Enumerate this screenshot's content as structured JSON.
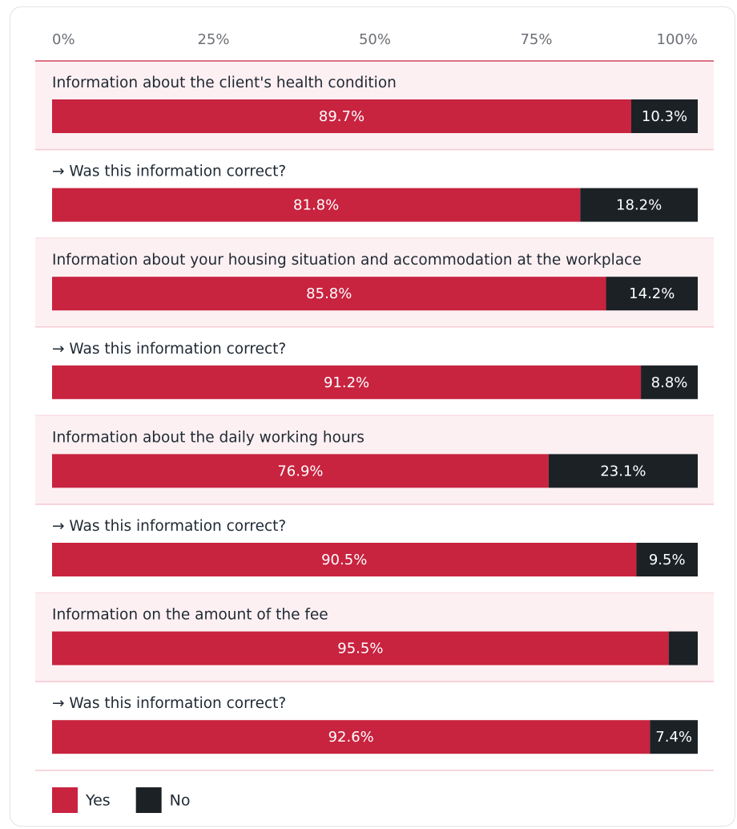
{
  "chart_data": {
    "type": "stacked-bar-horizontal",
    "categories": [
      "Information about the client's health condition",
      "→ Was this information correct?",
      "Information about your housing situation and accommodation at the workplace",
      "→ Was this information correct?",
      "Information about the daily working hours",
      "→ Was this information correct?",
      "Information on the amount of the fee",
      "→ Was this information correct?"
    ],
    "series": [
      {
        "name": "Yes",
        "color": "#c8233f",
        "values": [
          89.7,
          81.8,
          85.8,
          91.2,
          76.9,
          90.5,
          95.5,
          92.6
        ],
        "value_labels": [
          "89.7%",
          "81.8%",
          "85.8%",
          "91.2%",
          "76.9%",
          "90.5%",
          "95.5%",
          "92.6%"
        ]
      },
      {
        "name": "No",
        "color": "#1c2126",
        "values": [
          10.3,
          18.2,
          14.2,
          8.8,
          23.1,
          9.5,
          4.5,
          7.4
        ],
        "value_labels": [
          "10.3%",
          "18.2%",
          "14.2%",
          "8.8%",
          "23.1%",
          "9.5%",
          null,
          "7.4%"
        ]
      }
    ],
    "xlim": [
      0,
      100
    ],
    "xticks": [
      {
        "value": 0,
        "label": "0%"
      },
      {
        "value": 25,
        "label": "25%"
      },
      {
        "value": 50,
        "label": "50%"
      },
      {
        "value": 75,
        "label": "75%"
      },
      {
        "value": 100,
        "label": "100%"
      }
    ]
  }
}
